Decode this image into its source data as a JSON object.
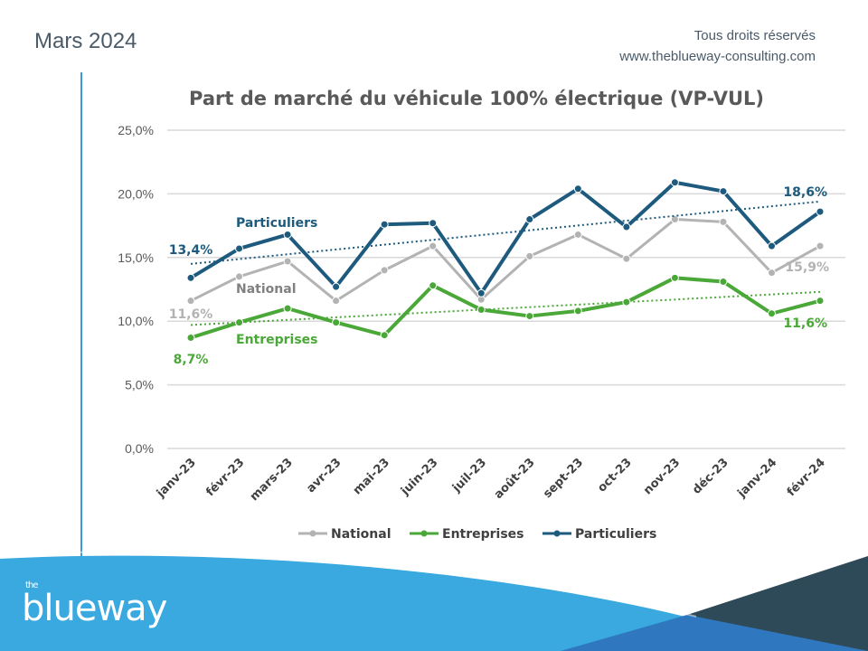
{
  "header": {
    "date": "Mars 2024",
    "rights": "Tous droits réservés",
    "website": "www.theblueway-consulting.com"
  },
  "logo": {
    "the": "the",
    "name": "blueway"
  },
  "colors": {
    "national": "#b3b3b3",
    "entreprises": "#4aa838",
    "particuliers": "#1d5a7e",
    "accent": "#3aa9e0",
    "dark": "#2e4a58",
    "mid": "#2f78bf"
  },
  "chart_data": {
    "type": "line",
    "title": "Part de marché du véhicule 100% électrique (VP-VUL)",
    "categories": [
      "janv-23",
      "févr-23",
      "mars-23",
      "avr-23",
      "mai-23",
      "juin-23",
      "juil-23",
      "août-23",
      "sept-23",
      "oct-23",
      "nov-23",
      "déc-23",
      "janv-24",
      "févr-24"
    ],
    "ylim": [
      0,
      25
    ],
    "yticks": [
      "0,0%",
      "5,0%",
      "10,0%",
      "15,0%",
      "20,0%",
      "25,0%"
    ],
    "grid": true,
    "legend_position": "bottom",
    "series": [
      {
        "name": "National",
        "color": "#b3b3b3",
        "values": [
          11.6,
          13.5,
          14.7,
          11.6,
          14.0,
          15.9,
          11.7,
          15.1,
          16.8,
          14.9,
          18.0,
          17.8,
          13.8,
          15.9
        ],
        "start_label": "11,6%",
        "end_label": "15,9%",
        "inline_label": "National",
        "trend": null
      },
      {
        "name": "Entreprises",
        "color": "#4aa838",
        "values": [
          8.7,
          9.9,
          11.0,
          9.9,
          8.9,
          12.8,
          10.9,
          10.4,
          10.8,
          11.5,
          13.4,
          13.1,
          10.6,
          11.6
        ],
        "start_label": "8,7%",
        "end_label": "11,6%",
        "inline_label": "Entreprises",
        "trend": [
          9.7,
          12.3
        ]
      },
      {
        "name": "Particuliers",
        "color": "#1d5a7e",
        "values": [
          13.4,
          15.7,
          16.8,
          12.7,
          17.6,
          17.7,
          12.2,
          18.0,
          20.4,
          17.4,
          20.9,
          20.2,
          15.9,
          18.6
        ],
        "start_label": "13,4%",
        "end_label": "18,6%",
        "inline_label": "Particuliers",
        "trend": [
          14.5,
          19.4
        ]
      }
    ]
  }
}
